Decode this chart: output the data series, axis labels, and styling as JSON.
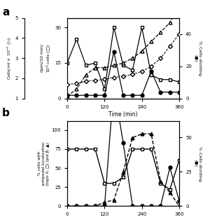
{
  "panel_a": {
    "time": [
      0,
      30,
      60,
      90,
      120,
      150,
      180,
      210,
      240,
      270,
      300,
      330,
      360
    ],
    "cells_ml": [
      1.7,
      1.75,
      1.85,
      1.9,
      1.95,
      2.05,
      2.1,
      2.2,
      2.35,
      2.6,
      3.0,
      3.6,
      4.2
    ],
    "dpm": [
      15,
      25,
      14,
      15,
      4,
      30,
      14,
      12,
      30,
      10,
      8,
      8,
      7
    ],
    "tri_open": [
      1,
      4,
      10,
      13,
      13,
      14,
      15,
      17,
      20,
      24,
      28,
      32,
      40
    ],
    "pct_div": [
      2,
      2,
      2,
      2,
      2,
      29,
      2,
      2,
      2,
      17,
      4,
      4,
      4
    ]
  },
  "panel_b": {
    "time": [
      0,
      30,
      60,
      90,
      120,
      150,
      180,
      210,
      240,
      270,
      300,
      330,
      360
    ],
    "topo": [
      75,
      75,
      75,
      75,
      30,
      30,
      38,
      75,
      75,
      75,
      30,
      22,
      60
    ],
    "pol": [
      0,
      0,
      0,
      0,
      5,
      8,
      45,
      90,
      95,
      95,
      33,
      18,
      0
    ],
    "div": [
      0,
      0,
      0,
      0,
      0,
      88,
      46,
      0,
      0,
      0,
      0,
      28,
      4
    ]
  }
}
